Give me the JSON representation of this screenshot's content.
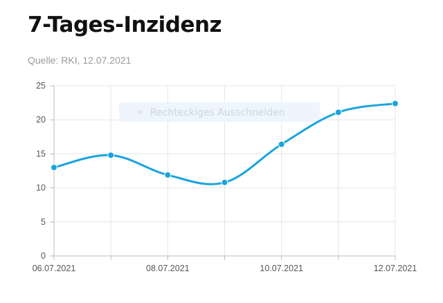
{
  "header": {
    "title": "7-Tages-Inzidenz",
    "source": "Quelle: RKI, 12.07.2021"
  },
  "overlay": {
    "label": "Rechteckiges Ausschneiden"
  },
  "colors": {
    "line": "#1aa3df",
    "grid": "#e6e6e6",
    "axis": "#bbbbbb",
    "overlay_bg": "#eef5fc"
  },
  "chart_data": {
    "type": "line",
    "title": "7-Tages-Inzidenz",
    "xlabel": "",
    "ylabel": "",
    "ylim": [
      0,
      25
    ],
    "yticks": [
      0,
      5,
      10,
      15,
      20,
      25
    ],
    "x": [
      "06.07.2021",
      "07.07.2021",
      "08.07.2021",
      "09.07.2021",
      "10.07.2021",
      "11.07.2021",
      "12.07.2021"
    ],
    "x_tick_labels": [
      "06.07.2021",
      "",
      "08.07.2021",
      "",
      "10.07.2021",
      "",
      "12.07.2021"
    ],
    "series": [
      {
        "values": [
          13.0,
          14.8,
          11.9,
          10.8,
          16.4,
          21.1,
          22.4
        ]
      }
    ],
    "grid": true,
    "curve": "smooth"
  }
}
